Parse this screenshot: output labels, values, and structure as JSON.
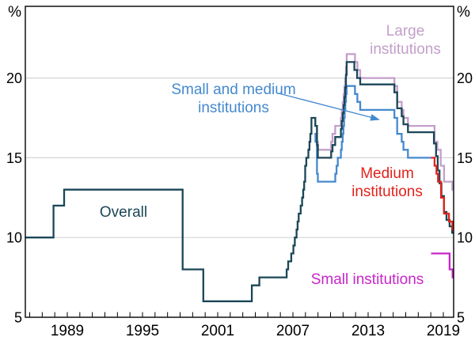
{
  "chart_data": {
    "type": "line",
    "subtype": "step-after",
    "unit": "%",
    "x_axis": {
      "range_years": [
        1985.65,
        2019.8
      ],
      "minor_tick_interval_years": 1,
      "minor_tick_start_year": 1986,
      "minor_tick_end_year": 2019,
      "label_years": [
        1989,
        1995,
        2001,
        2007,
        2013,
        2019
      ],
      "labels": [
        "1989",
        "1995",
        "2001",
        "2007",
        "2013",
        "2019"
      ]
    },
    "y_axis": {
      "range": [
        5,
        24.5
      ],
      "unit_label_left": "%",
      "unit_label_right": "%",
      "tick_values": [
        5,
        10,
        15,
        20
      ],
      "tick_labels": [
        "5",
        "10",
        "15",
        "20"
      ],
      "gridline_values": [
        10,
        15,
        20
      ],
      "gridlines": true,
      "labels_both_sides": true
    },
    "series": [
      {
        "id": "large",
        "name": "Large institutions",
        "color": "#c39fc9",
        "points": [
          [
            2008.6,
            17.5
          ],
          [
            2008.79,
            17
          ],
          [
            2008.92,
            16
          ],
          [
            2008.99,
            15.5
          ],
          [
            2010.05,
            16
          ],
          [
            2010.16,
            16.5
          ],
          [
            2010.37,
            17
          ],
          [
            2010.83,
            17.5
          ],
          [
            2010.9,
            18
          ],
          [
            2010.97,
            18.5
          ],
          [
            2011.05,
            19
          ],
          [
            2011.11,
            19.5
          ],
          [
            2011.17,
            20
          ],
          [
            2011.23,
            20.7
          ],
          [
            2011.29,
            21.5
          ],
          [
            2011.95,
            21
          ],
          [
            2012.14,
            20.5
          ],
          [
            2012.37,
            20
          ],
          [
            2015.1,
            19.5
          ],
          [
            2015.32,
            18.5
          ],
          [
            2015.68,
            18
          ],
          [
            2015.82,
            17.5
          ],
          [
            2016.18,
            17
          ],
          [
            2018.3,
            16
          ],
          [
            2018.52,
            15.5
          ],
          [
            2018.79,
            14.5
          ],
          [
            2019.06,
            13.5
          ],
          [
            2019.72,
            13
          ],
          [
            2019.8,
            13
          ]
        ]
      },
      {
        "id": "small_medium",
        "name": "Small and medium institutions",
        "color": "#4589cf",
        "points": [
          [
            2008.72,
            16.5
          ],
          [
            2008.8,
            16
          ],
          [
            2008.92,
            14
          ],
          [
            2008.99,
            13.5
          ],
          [
            2010.38,
            14
          ],
          [
            2010.48,
            14.5
          ],
          [
            2010.58,
            15
          ],
          [
            2010.83,
            15.5
          ],
          [
            2010.9,
            16
          ],
          [
            2010.97,
            16.5
          ],
          [
            2011.03,
            17
          ],
          [
            2011.08,
            17.5
          ],
          [
            2011.13,
            18
          ],
          [
            2011.18,
            18.5
          ],
          [
            2011.23,
            19
          ],
          [
            2011.28,
            19.5
          ],
          [
            2011.95,
            19
          ],
          [
            2012.14,
            18.5
          ],
          [
            2012.37,
            18
          ],
          [
            2015.1,
            17.5
          ],
          [
            2015.32,
            16.5
          ],
          [
            2015.68,
            16
          ],
          [
            2015.82,
            15.5
          ],
          [
            2016.18,
            15
          ],
          [
            2018.02,
            15
          ]
        ]
      },
      {
        "id": "overall",
        "name": "Overall",
        "color": "#1A4657",
        "points": [
          [
            1985.65,
            10
          ],
          [
            1987.9,
            12
          ],
          [
            1988.75,
            13
          ],
          [
            1998.2,
            8
          ],
          [
            1999.85,
            6
          ],
          [
            2003.72,
            7
          ],
          [
            2004.32,
            7.5
          ],
          [
            2006.5,
            8
          ],
          [
            2006.62,
            8.5
          ],
          [
            2006.87,
            9
          ],
          [
            2007.04,
            9.5
          ],
          [
            2007.15,
            10
          ],
          [
            2007.29,
            10.5
          ],
          [
            2007.37,
            11
          ],
          [
            2007.46,
            11.5
          ],
          [
            2007.62,
            12
          ],
          [
            2007.73,
            12.5
          ],
          [
            2007.82,
            13
          ],
          [
            2007.9,
            13.5
          ],
          [
            2007.98,
            14.5
          ],
          [
            2008.07,
            15
          ],
          [
            2008.23,
            15.5
          ],
          [
            2008.32,
            16
          ],
          [
            2008.39,
            16.5
          ],
          [
            2008.48,
            17.5
          ],
          [
            2008.79,
            17
          ],
          [
            2008.92,
            15.8
          ],
          [
            2008.99,
            15
          ],
          [
            2010.05,
            15.4
          ],
          [
            2010.16,
            15.8
          ],
          [
            2010.37,
            16.3
          ],
          [
            2010.83,
            16.8
          ],
          [
            2010.9,
            17.3
          ],
          [
            2010.97,
            17.8
          ],
          [
            2011.05,
            18.3
          ],
          [
            2011.11,
            18.8
          ],
          [
            2011.17,
            19.4
          ],
          [
            2011.23,
            20.2
          ],
          [
            2011.29,
            21
          ],
          [
            2011.9,
            20.5
          ],
          [
            2012.12,
            20
          ],
          [
            2012.37,
            19.6
          ],
          [
            2015.1,
            19.1
          ],
          [
            2015.32,
            18.1
          ],
          [
            2015.68,
            17.6
          ],
          [
            2015.82,
            17.1
          ],
          [
            2016.18,
            16.6
          ],
          [
            2018.25,
            15.9
          ],
          [
            2018.42,
            15.1
          ],
          [
            2018.55,
            14.2
          ],
          [
            2018.7,
            13.4
          ],
          [
            2018.85,
            12.6
          ],
          [
            2019.05,
            11.6
          ],
          [
            2019.25,
            11.1
          ],
          [
            2019.5,
            10.7
          ],
          [
            2019.7,
            10.3
          ],
          [
            2019.8,
            10.3
          ]
        ]
      },
      {
        "id": "medium",
        "name": "Medium institutions",
        "color": "#e0231c",
        "points": [
          [
            2018.02,
            15
          ],
          [
            2018.3,
            14.5
          ],
          [
            2018.45,
            14
          ],
          [
            2018.58,
            13.5
          ],
          [
            2018.82,
            12.5
          ],
          [
            2019.06,
            11.5
          ],
          [
            2019.45,
            11
          ],
          [
            2019.72,
            10.5
          ],
          [
            2019.8,
            10.5
          ]
        ]
      },
      {
        "id": "small",
        "name": "Small institutions",
        "color": "#c726c9",
        "points": [
          [
            2018.02,
            9
          ],
          [
            2019.5,
            8
          ],
          [
            2019.74,
            7.5
          ],
          [
            2019.8,
            7.5
          ]
        ]
      }
    ],
    "annotations": {
      "overall": {
        "line1": "Overall"
      },
      "large": {
        "line1": "Large",
        "line2": "institutions"
      },
      "small_medium": {
        "line1": "Small and medium",
        "line2": "institutions"
      },
      "medium": {
        "line1": "Medium",
        "line2": "institutions"
      },
      "small": {
        "line1": "Small institutions"
      }
    },
    "style": {
      "gridline_color": "#d4d4d4",
      "frame_color": "#000000",
      "text_color": "#000000",
      "background": "#ffffff"
    }
  }
}
